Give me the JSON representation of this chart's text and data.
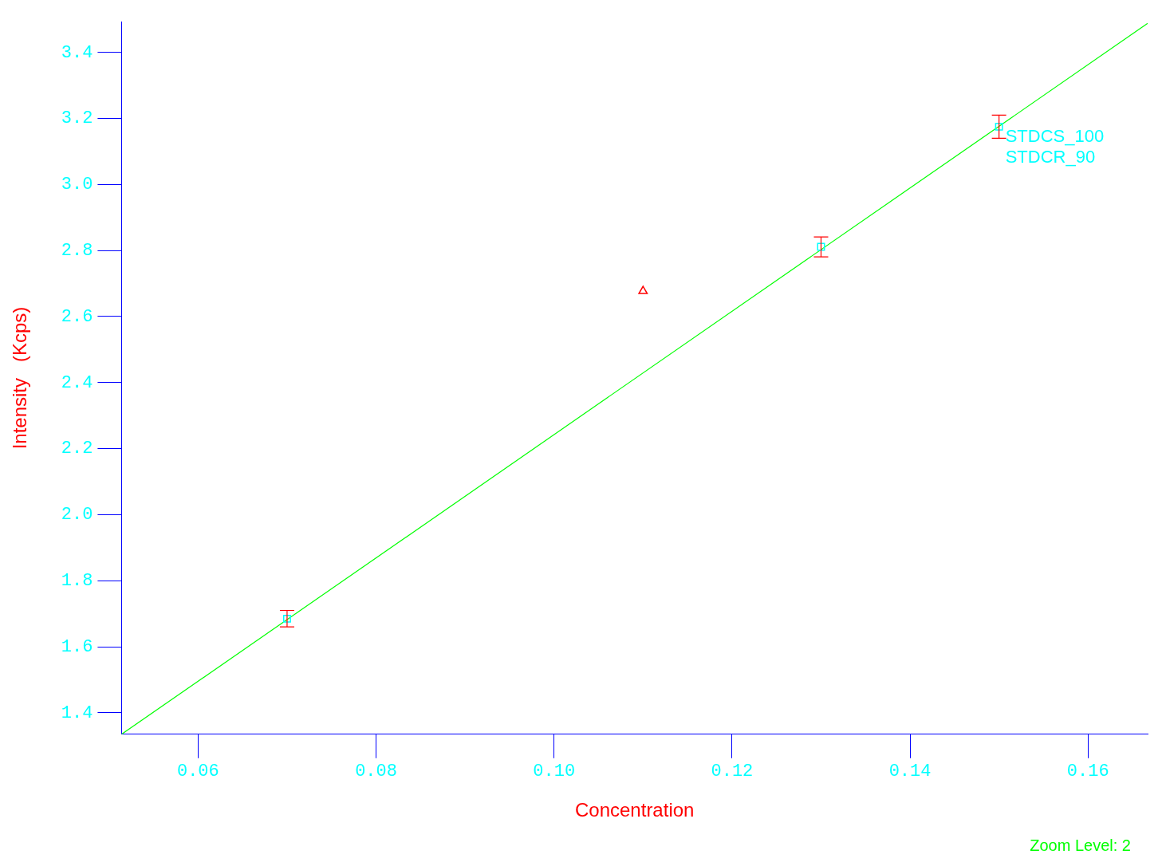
{
  "chart_data": {
    "type": "scatter",
    "xlabel": "Concentration",
    "ylabel": "Intensity   (Kcps)",
    "xlim": [
      0.0514,
      0.1667
    ],
    "ylim": [
      1.335,
      3.493
    ],
    "xticks": [
      {
        "value": 0.06,
        "label": "0.06"
      },
      {
        "value": 0.08,
        "label": "0.08"
      },
      {
        "value": 0.1,
        "label": "0.10"
      },
      {
        "value": 0.12,
        "label": "0.12"
      },
      {
        "value": 0.14,
        "label": "0.14"
      },
      {
        "value": 0.16,
        "label": "0.16"
      }
    ],
    "yticks": [
      {
        "value": 1.4,
        "label": "1.4"
      },
      {
        "value": 1.6,
        "label": "1.6"
      },
      {
        "value": 1.8,
        "label": "1.8"
      },
      {
        "value": 2,
        "label": "2.0"
      },
      {
        "value": 2.2,
        "label": "2.2"
      },
      {
        "value": 2.4,
        "label": "2.4"
      },
      {
        "value": 2.6,
        "label": "2.6"
      },
      {
        "value": 2.8,
        "label": "2.8"
      },
      {
        "value": 3,
        "label": "3.0"
      },
      {
        "value": 3.2,
        "label": "3.2"
      },
      {
        "value": 3.4,
        "label": "3.4"
      }
    ],
    "grid": false,
    "legend": false,
    "series": [
      {
        "type": "scatter",
        "marker": "square",
        "color": "#00ffff",
        "x": [
          0.07,
          0.13,
          0.15
        ],
        "values": [
          1.685,
          2.811,
          3.175
        ],
        "errors": [
          0.025,
          0.03,
          0.035
        ]
      },
      {
        "type": "scatter",
        "marker": "triangle",
        "color": "#ff0000",
        "x": [
          0.11
        ],
        "values": [
          2.677
        ]
      },
      {
        "type": "line",
        "marker": "none",
        "color": "#00ff00",
        "x": [
          0.0514,
          0.1667
        ],
        "values": [
          1.335,
          3.488
        ]
      }
    ],
    "annotations": [
      {
        "text": "STDCS_100",
        "x": 0.15,
        "y": 3.175
      },
      {
        "text": "STDCR_90",
        "x": 0.15,
        "y": 3.175
      },
      "Zoom Level: 2"
    ]
  }
}
